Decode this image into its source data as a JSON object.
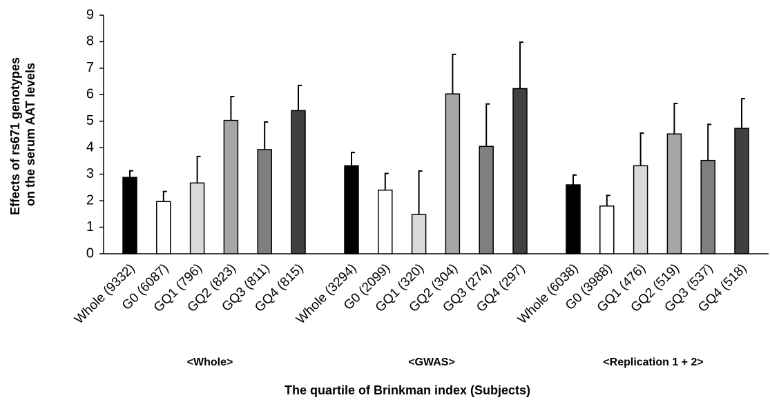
{
  "chart_data": {
    "type": "bar",
    "y_label": [
      "Effects of rs671 genotypes",
      "on the serum AAT levels"
    ],
    "x_label": "The quartile of Brinkman index (Subjects)",
    "colors": [
      "#000000",
      "#ffffff",
      "#d9d9d9",
      "#a6a6a6",
      "#7f7f7f",
      "#404040"
    ],
    "ylim": [
      0,
      9
    ],
    "yticks": [
      0,
      1,
      2,
      3,
      4,
      5,
      6,
      7,
      8,
      9
    ],
    "groups": [
      {
        "name": "<Whole>",
        "categories": [
          "Whole (9332)",
          "G0 (6087)",
          "GQ1 (796)",
          "GQ2 (823)",
          "GQ3 (811)",
          "GQ4 (815)"
        ],
        "values": [
          2.88,
          1.97,
          2.67,
          5.03,
          3.93,
          5.4
        ],
        "errors": [
          0.25,
          0.38,
          1.0,
          0.9,
          1.04,
          0.95
        ]
      },
      {
        "name": "<GWAS>",
        "categories": [
          "Whole (3294)",
          "G0 (2099)",
          "GQ1 (320)",
          "GQ2 (304)",
          "GQ3 (274)",
          "GQ4 (297)"
        ],
        "values": [
          3.32,
          2.4,
          1.48,
          6.03,
          4.05,
          6.23
        ],
        "errors": [
          0.5,
          0.63,
          1.64,
          1.49,
          1.6,
          1.75
        ]
      },
      {
        "name": "<Replication 1 + 2>",
        "categories": [
          "Whole (6038)",
          "G0 (3988)",
          "GQ1 (476)",
          "GQ2 (519)",
          "GQ3 (537)",
          "GQ4 (518)"
        ],
        "values": [
          2.6,
          1.8,
          3.32,
          4.52,
          3.52,
          4.73
        ],
        "errors": [
          0.37,
          0.4,
          1.23,
          1.15,
          1.36,
          1.12
        ]
      }
    ]
  }
}
